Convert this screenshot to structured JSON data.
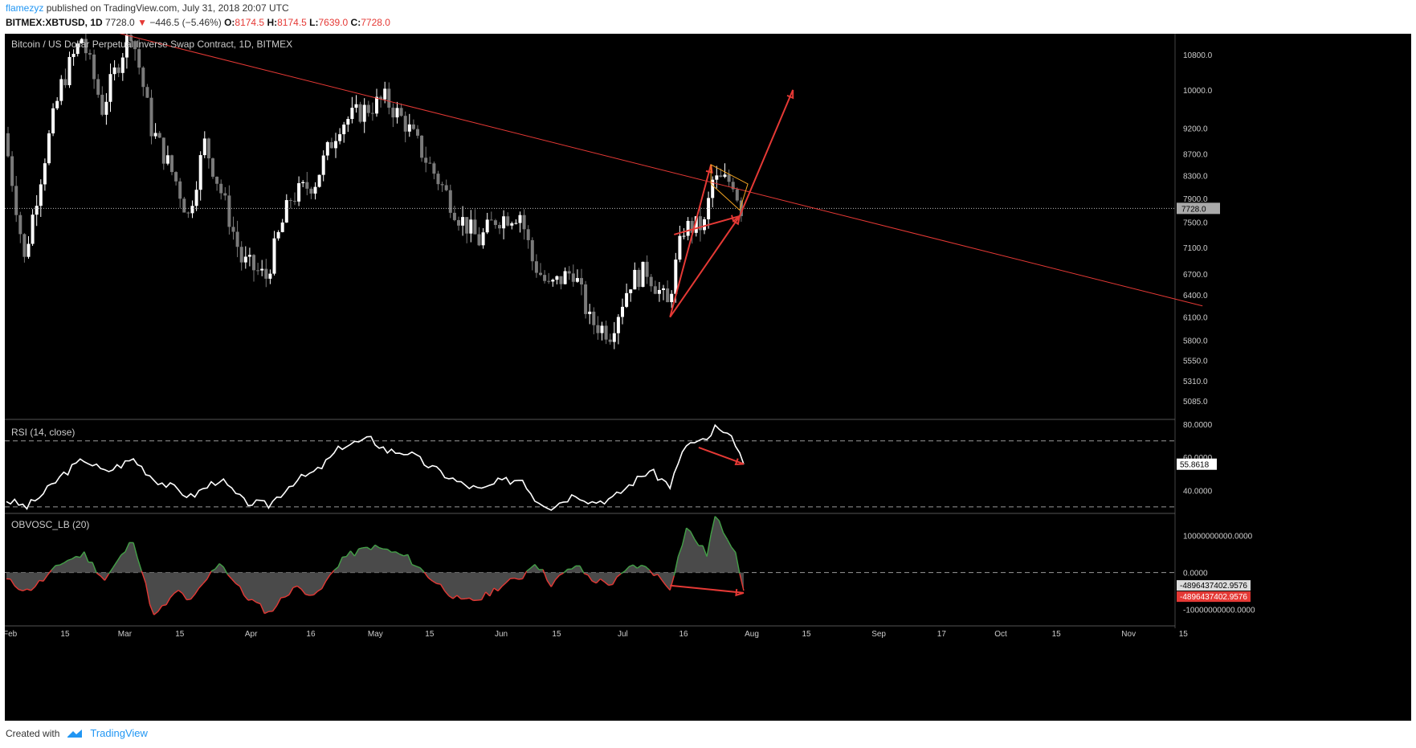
{
  "header": {
    "author": "flamezyz",
    "published": "published on TradingView.com, July 31, 2018 20:07 UTC",
    "symbol": "BITMEX:XBTUSD, 1D",
    "last": "7728.0",
    "change_arrow": "▼",
    "change": "−446.5 (−5.46%)",
    "o_label": "O:",
    "o": "8174.5",
    "h_label": "H:",
    "h": "8174.5",
    "l_label": "L:",
    "l": "7639.0",
    "c_label": "C:",
    "c": "7728.0"
  },
  "footer": {
    "created": "Created with",
    "brand": "TradingView",
    "logo_icon": "tradingview-logo-icon"
  },
  "colors": {
    "background": "#000000",
    "up": "#ffffff",
    "down": "#7a7a7a",
    "accent": "#e53935",
    "obv_pos": "#43a047",
    "obv_neg": "#e53935",
    "wedge": "#f5a623"
  },
  "chart_data": [
    {
      "type": "candlestick",
      "title": "Bitcoin / US Dollar Perpetual Inverse Swap Contract, 1D, BITMEX",
      "scale": "log",
      "ylim": [
        4900,
        11300
      ],
      "y_ticks": [
        "10800.0",
        "10000.0",
        "9200.0",
        "8700.0",
        "8300.0",
        "7900.0",
        "7500.0",
        "7100.0",
        "6700.0",
        "6400.0",
        "6100.0",
        "5800.0",
        "5550.0",
        "5310.0",
        "5085.0"
      ],
      "last_price_label": "7728.0",
      "x_ticks": [
        "Feb",
        "15",
        "Mar",
        "15",
        "Apr",
        "16",
        "May",
        "15",
        "Jun",
        "15",
        "Jul",
        "16",
        "Aug",
        "15",
        "Sep",
        "17",
        "Oct",
        "15",
        "Nov",
        "15"
      ],
      "close_path": [
        [
          "2018-02-01",
          9100
        ],
        [
          "2018-02-06",
          6900
        ],
        [
          "2018-02-10",
          8300
        ],
        [
          "2018-02-15",
          10100
        ],
        [
          "2018-02-20",
          11200
        ],
        [
          "2018-02-25",
          9600
        ],
        [
          "2018-03-04",
          11400
        ],
        [
          "2018-03-09",
          9200
        ],
        [
          "2018-03-15",
          8200
        ],
        [
          "2018-03-18",
          7600
        ],
        [
          "2018-03-22",
          8900
        ],
        [
          "2018-03-31",
          6900
        ],
        [
          "2018-04-06",
          6650
        ],
        [
          "2018-04-12",
          7900
        ],
        [
          "2018-04-18",
          8200
        ],
        [
          "2018-04-24",
          9300
        ],
        [
          "2018-05-05",
          9800
        ],
        [
          "2018-05-10",
          9300
        ],
        [
          "2018-05-15",
          8600
        ],
        [
          "2018-05-23",
          7600
        ],
        [
          "2018-05-28",
          7200
        ],
        [
          "2018-06-01",
          7550
        ],
        [
          "2018-06-07",
          7650
        ],
        [
          "2018-06-10",
          6900
        ],
        [
          "2018-06-14",
          6500
        ],
        [
          "2018-06-20",
          6750
        ],
        [
          "2018-06-24",
          6050
        ],
        [
          "2018-06-29",
          5900
        ],
        [
          "2018-07-04",
          6600
        ],
        [
          "2018-07-08",
          6750
        ],
        [
          "2018-07-13",
          6250
        ],
        [
          "2018-07-17",
          7400
        ],
        [
          "2018-07-22",
          7450
        ],
        [
          "2018-07-24",
          8200
        ],
        [
          "2018-07-29",
          8200
        ],
        [
          "2018-07-31",
          7728
        ]
      ],
      "annotations": [
        {
          "type": "trendline",
          "from": [
            "2018-02-25",
            11400
          ],
          "to": [
            "2018-11-20",
            6250
          ]
        },
        {
          "type": "arrow",
          "from": [
            "2018-07-13",
            6100
          ],
          "to": [
            "2018-07-23",
            8500
          ]
        },
        {
          "type": "arrow",
          "from": [
            "2018-07-13",
            6100
          ],
          "to": [
            "2018-07-30",
            7600
          ]
        },
        {
          "type": "arrow",
          "from": [
            "2018-07-14",
            7300
          ],
          "to": [
            "2018-07-30",
            7600
          ]
        },
        {
          "type": "arrow",
          "from": [
            "2018-07-30",
            7600
          ],
          "to": [
            "2018-08-12",
            10000
          ]
        },
        {
          "type": "wedge",
          "points": [
            [
              "2018-07-23",
              8500
            ],
            [
              "2018-08-01",
              8150
            ],
            [
              "2018-07-30",
              7700
            ],
            [
              "2018-07-23",
              8150
            ]
          ]
        }
      ]
    },
    {
      "type": "line",
      "title": "RSI (14, close)",
      "ylim": [
        27,
        83
      ],
      "y_ticks": [
        "80.0000",
        "60.0000",
        "40.0000"
      ],
      "levels": [
        70,
        30
      ],
      "last_value_label": "55.8618",
      "values": [
        [
          "2018-02-01",
          34
        ],
        [
          "2018-02-06",
          30
        ],
        [
          "2018-02-10",
          38
        ],
        [
          "2018-02-15",
          50
        ],
        [
          "2018-02-20",
          59
        ],
        [
          "2018-02-25",
          51
        ],
        [
          "2018-03-04",
          59
        ],
        [
          "2018-03-09",
          47
        ],
        [
          "2018-03-15",
          40
        ],
        [
          "2018-03-18",
          36
        ],
        [
          "2018-03-25",
          47
        ],
        [
          "2018-03-31",
          33
        ],
        [
          "2018-04-06",
          31
        ],
        [
          "2018-04-12",
          45
        ],
        [
          "2018-04-18",
          52
        ],
        [
          "2018-04-24",
          67
        ],
        [
          "2018-05-01",
          71
        ],
        [
          "2018-05-05",
          64
        ],
        [
          "2018-05-10",
          63
        ],
        [
          "2018-05-15",
          55
        ],
        [
          "2018-05-23",
          44
        ],
        [
          "2018-05-28",
          40
        ],
        [
          "2018-06-01",
          45
        ],
        [
          "2018-06-07",
          47
        ],
        [
          "2018-06-10",
          35
        ],
        [
          "2018-06-14",
          30
        ],
        [
          "2018-06-20",
          38
        ],
        [
          "2018-06-24",
          33
        ],
        [
          "2018-06-29",
          35
        ],
        [
          "2018-07-04",
          45
        ],
        [
          "2018-07-08",
          52
        ],
        [
          "2018-07-13",
          43
        ],
        [
          "2018-07-17",
          68
        ],
        [
          "2018-07-22",
          70
        ],
        [
          "2018-07-24",
          78
        ],
        [
          "2018-07-29",
          69
        ],
        [
          "2018-07-31",
          55.86
        ]
      ],
      "annotations": [
        {
          "type": "arrow",
          "from": [
            "2018-07-20",
            66
          ],
          "to": [
            "2018-07-31",
            56
          ]
        }
      ]
    },
    {
      "type": "area",
      "title": "OBVOSC_LB (20)",
      "ylim": [
        -14000000000,
        16000000000
      ],
      "y_ticks": [
        "10000000000.0000",
        "0.0000",
        "-10000000000.0000"
      ],
      "last_value_labels": [
        "-4896437402.9576",
        "-4896437402.9576"
      ],
      "values": [
        [
          "2018-02-01",
          -2000000000.0
        ],
        [
          "2018-02-06",
          -5000000000.0
        ],
        [
          "2018-02-10",
          -2000000000.0
        ],
        [
          "2018-02-15",
          3000000000.0
        ],
        [
          "2018-02-20",
          5000000000.0
        ],
        [
          "2018-02-25",
          -2000000000.0
        ],
        [
          "2018-03-04",
          9000000000.0
        ],
        [
          "2018-03-09",
          -12000000000.0
        ],
        [
          "2018-03-15",
          -5000000000.0
        ],
        [
          "2018-03-18",
          -8000000000.0
        ],
        [
          "2018-03-25",
          3000000000.0
        ],
        [
          "2018-03-31",
          -6000000000.0
        ],
        [
          "2018-04-06",
          -11000000000.0
        ],
        [
          "2018-04-12",
          -4000000000.0
        ],
        [
          "2018-04-18",
          -6000000000.0
        ],
        [
          "2018-04-24",
          4000000000.0
        ],
        [
          "2018-05-01",
          7000000000.0
        ],
        [
          "2018-05-05",
          6000000000.0
        ],
        [
          "2018-05-10",
          4000000000.0
        ],
        [
          "2018-05-15",
          -1000000000.0
        ],
        [
          "2018-05-23",
          -8000000000.0
        ],
        [
          "2018-05-28",
          -7000000000.0
        ],
        [
          "2018-06-01",
          -4000000000.0
        ],
        [
          "2018-06-07",
          -1000000000.0
        ],
        [
          "2018-06-10",
          3000000000.0
        ],
        [
          "2018-06-14",
          -3000000000.0
        ],
        [
          "2018-06-20",
          2000000000.0
        ],
        [
          "2018-06-24",
          -2000000000.0
        ],
        [
          "2018-06-29",
          -3000000000.0
        ],
        [
          "2018-07-04",
          2000000000.0
        ],
        [
          "2018-07-08",
          1000000000.0
        ],
        [
          "2018-07-13",
          -4000000000.0
        ],
        [
          "2018-07-17",
          12000000000.0
        ],
        [
          "2018-07-22",
          5000000000.0
        ],
        [
          "2018-07-24",
          15000000000.0
        ],
        [
          "2018-07-29",
          6000000000.0
        ],
        [
          "2018-07-31",
          -4896437402.96
        ]
      ],
      "annotations": [
        {
          "type": "arrow",
          "from": [
            "2018-07-13",
            -3500000000.0
          ],
          "to": [
            "2018-07-31",
            -5500000000.0
          ]
        }
      ]
    }
  ]
}
